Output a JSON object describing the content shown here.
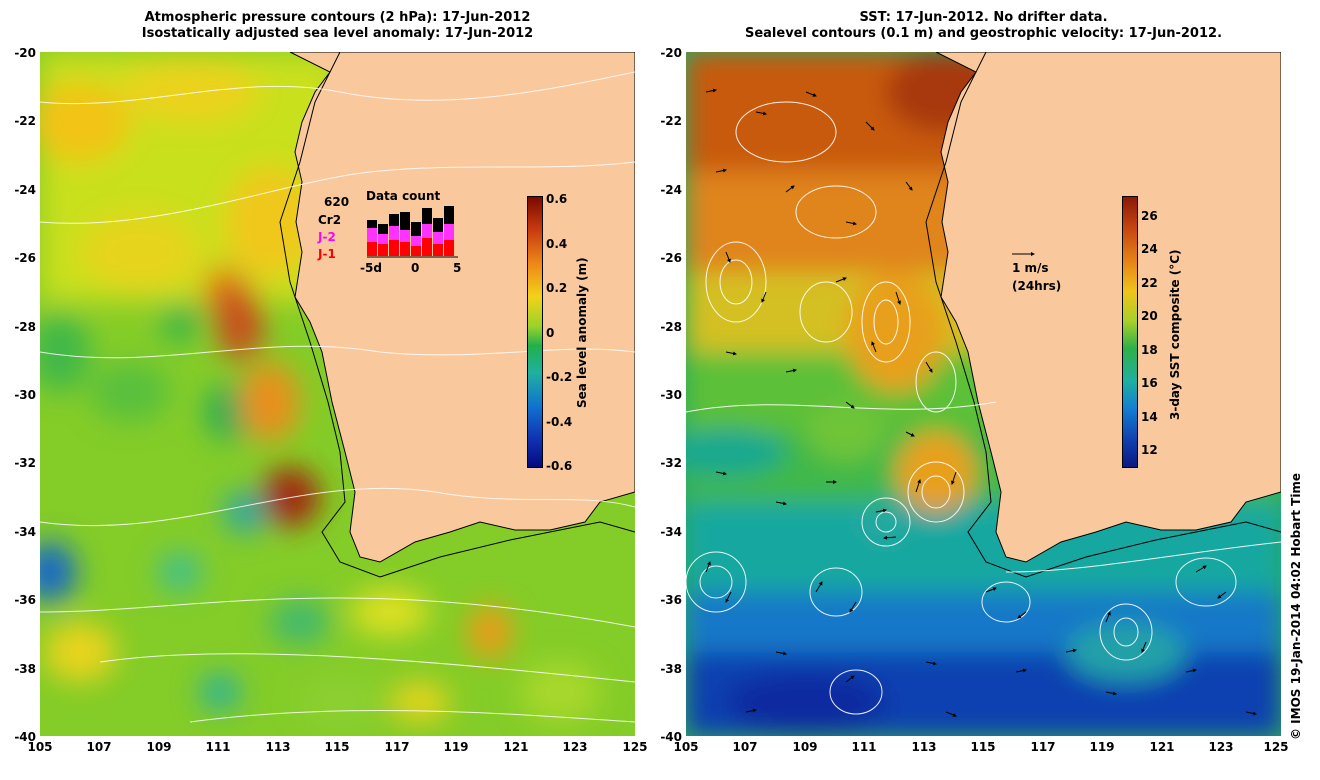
{
  "left": {
    "title_line1": "Atmospheric pressure contours (2 hPa): 17-Jun-2012",
    "title_line2": "Isostatically adjusted sea level anomaly: 17-Jun-2012",
    "colorbar_title": "Sea level anomaly (m)",
    "colorbar_ticks": [
      "0.6",
      "0.4",
      "0.2",
      "0",
      "-0.2",
      "-0.4",
      "-0.6"
    ],
    "data_count": {
      "title": "Data count",
      "total": "620",
      "satellites": [
        "Cr2",
        "J-2",
        "J-1"
      ],
      "axis_labels": [
        "-5d",
        "0",
        "5"
      ]
    }
  },
  "right": {
    "title_line1": "SST: 17-Jun-2012. No drifter data.",
    "title_line2": "Sealevel contours (0.1 m) and geostrophic velocity: 17-Jun-2012.",
    "colorbar_title": "3-day SST composite (°C)",
    "colorbar_ticks": [
      "26",
      "24",
      "22",
      "20",
      "18",
      "16",
      "14",
      "12"
    ],
    "scale_label": "1 m/s",
    "scale_sublabel": "(24hrs)"
  },
  "axes": {
    "lat_labels": [
      "-20",
      "-22",
      "-24",
      "-26",
      "-28",
      "-30",
      "-32",
      "-34",
      "-36",
      "-38",
      "-40"
    ],
    "lon_labels": [
      "105",
      "107",
      "109",
      "111",
      "113",
      "115",
      "117",
      "119",
      "121",
      "123",
      "125"
    ]
  },
  "credit": "© IMOS 19-Jan-2014 04:02 Hobart Time",
  "colors": {
    "land": "#f9c89c",
    "sla_high": "#8b1a00",
    "sla_mid": "#22b04a",
    "sla_low": "#05128a",
    "sst_warm": "#b84a00",
    "sst_cool": "#0a2aa0"
  }
}
